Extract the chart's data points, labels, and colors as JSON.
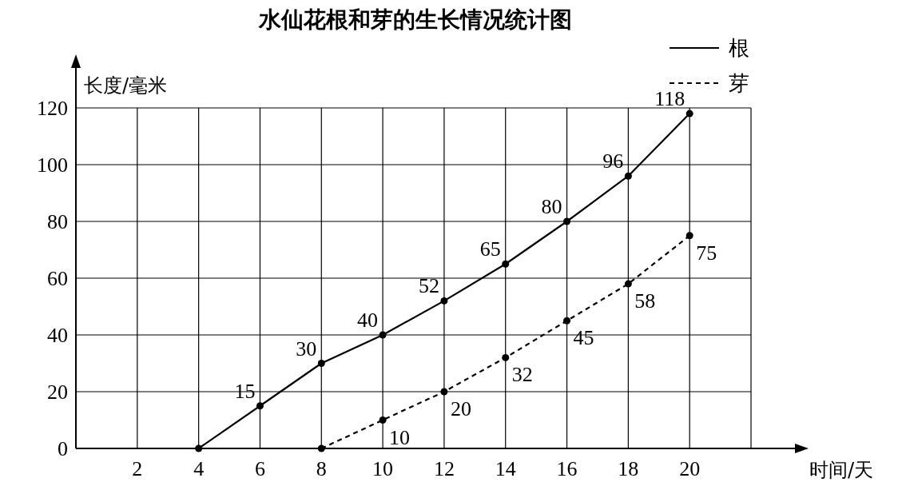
{
  "chart_data": {
    "type": "line",
    "title": "水仙花根和芽的生长情况统计图",
    "xlabel": "时间/天",
    "ylabel": "长度/毫米",
    "xlim": [
      0,
      22
    ],
    "xticks": [
      2,
      4,
      6,
      8,
      10,
      12,
      14,
      16,
      18,
      20
    ],
    "ylim": [
      0,
      120
    ],
    "yticks": [
      0,
      20,
      40,
      60,
      80,
      100,
      120
    ],
    "grid": true,
    "legend": "top right",
    "marker": "circle",
    "series": [
      {
        "name": "根",
        "color": "#000000",
        "line_style": "solid",
        "x": [
          4,
          6,
          8,
          10,
          12,
          14,
          16,
          18,
          20
        ],
        "values": [
          0,
          15,
          30,
          40,
          52,
          65,
          80,
          96,
          118
        ],
        "value_labels": [
          null,
          "15",
          "30",
          "40",
          "52",
          "65",
          "80",
          "96",
          "118"
        ]
      },
      {
        "name": "芽",
        "color": "#000000",
        "line_style": "dashed",
        "x": [
          8,
          10,
          12,
          14,
          16,
          18,
          20
        ],
        "values": [
          0,
          10,
          20,
          32,
          45,
          58,
          75
        ],
        "value_labels": [
          null,
          "10",
          "20",
          "32",
          "45",
          "58",
          "75"
        ]
      }
    ]
  }
}
